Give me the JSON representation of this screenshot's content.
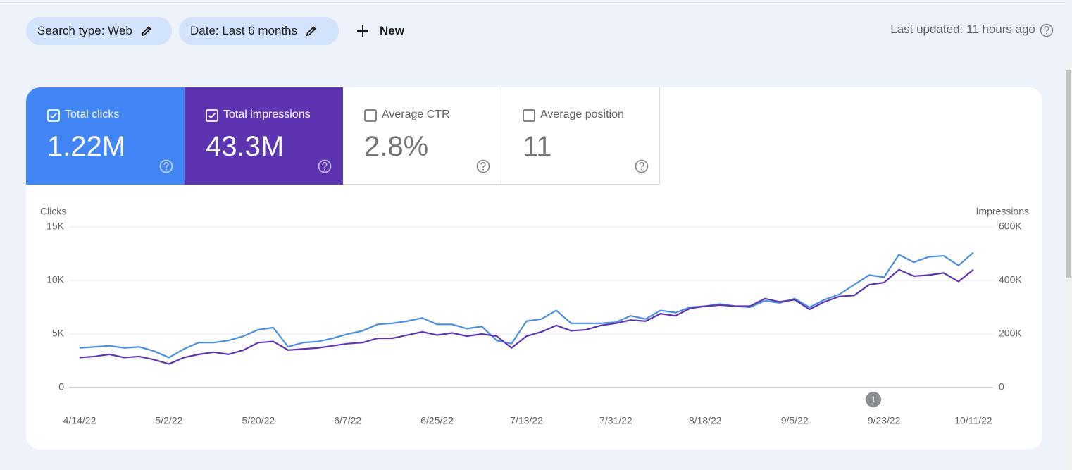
{
  "filters": [
    {
      "label": "Search type: Web"
    },
    {
      "label": "Date: Last 6 months"
    }
  ],
  "new_button": "New",
  "last_updated": "Last updated: 11 hours ago",
  "metrics": [
    {
      "label": "Total clicks",
      "value": "1.22M",
      "selected": true,
      "color": "#4285f4"
    },
    {
      "label": "Total impressions",
      "value": "43.3M",
      "selected": true,
      "color": "#5e35b1"
    },
    {
      "label": "Average CTR",
      "value": "2.8%",
      "selected": false
    },
    {
      "label": "Average position",
      "value": "11",
      "selected": false
    }
  ],
  "chart_data": {
    "type": "line",
    "y_label": "Clicks",
    "y2_label": "Impressions",
    "annotation": "1",
    "categories": [
      "4/14/22",
      null,
      null,
      null,
      null,
      null,
      "5/2/22",
      null,
      null,
      null,
      null,
      null,
      "5/20/22",
      null,
      null,
      null,
      null,
      null,
      "6/7/22",
      null,
      null,
      null,
      null,
      null,
      "6/25/22",
      null,
      null,
      null,
      null,
      null,
      "7/13/22",
      null,
      null,
      null,
      null,
      null,
      "7/31/22",
      null,
      null,
      null,
      null,
      null,
      "8/18/22",
      null,
      null,
      null,
      null,
      null,
      "9/5/22",
      null,
      null,
      null,
      null,
      null,
      "9/23/22",
      null,
      null,
      null,
      null,
      null,
      "10/11/22"
    ],
    "series": [
      {
        "name": "Clicks",
        "color": "#4a8fe0",
        "values": [
          3700,
          3800,
          3900,
          3700,
          3800,
          3400,
          2800,
          3600,
          4200,
          4200,
          4400,
          4800,
          5400,
          5600,
          3800,
          4200,
          4300,
          4600,
          5000,
          5300,
          5900,
          6000,
          6200,
          6500,
          5900,
          5900,
          5500,
          5700,
          4400,
          4100,
          6200,
          6400,
          7200,
          6000,
          6000,
          6000,
          6100,
          6700,
          6400,
          7200,
          7000,
          7500,
          7600,
          7800,
          7600,
          7500,
          8100,
          7900,
          8300,
          7500,
          8200,
          8700,
          9600,
          10500,
          10300,
          12400,
          11700,
          12200,
          12300,
          11400,
          12600
        ]
      },
      {
        "name": "Impressions",
        "color": "#5e35b1",
        "axis": "y2",
        "values": [
          112000,
          116000,
          124000,
          112000,
          116000,
          104000,
          88000,
          112000,
          124000,
          132000,
          124000,
          140000,
          168000,
          172000,
          140000,
          144000,
          148000,
          156000,
          164000,
          168000,
          184000,
          184000,
          196000,
          208000,
          196000,
          204000,
          192000,
          200000,
          192000,
          148000,
          192000,
          208000,
          232000,
          212000,
          216000,
          232000,
          240000,
          252000,
          248000,
          276000,
          268000,
          296000,
          304000,
          308000,
          304000,
          304000,
          332000,
          320000,
          328000,
          292000,
          320000,
          340000,
          344000,
          384000,
          392000,
          440000,
          416000,
          420000,
          428000,
          396000,
          440000
        ]
      }
    ],
    "ylim": [
      0,
      15000
    ],
    "yticks": [
      0,
      {
        "value": 5000,
        "label": "5K"
      },
      {
        "value": 10000,
        "label": "10K"
      },
      {
        "value": 15000,
        "label": "15K"
      }
    ],
    "y2lim": [
      0,
      600000
    ],
    "y2ticks": [
      0,
      {
        "value": 200000,
        "label": "200K"
      },
      {
        "value": 400000,
        "label": "400K"
      },
      {
        "value": 600000,
        "label": "600K"
      }
    ],
    "grid": true
  }
}
